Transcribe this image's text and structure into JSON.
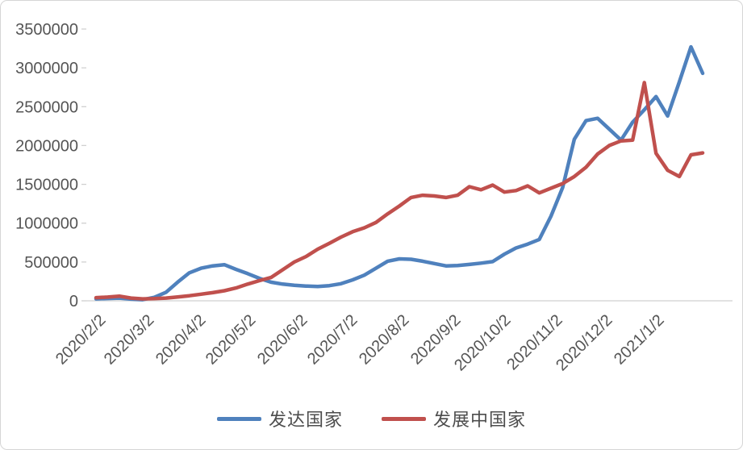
{
  "chart_data": {
    "type": "line",
    "title": "",
    "legend_position": "bottom",
    "grid": "none",
    "y_axis_range": [
      0,
      3500000
    ],
    "y_tick_step": 500000,
    "y_tick_labels": [
      "0",
      "500000",
      "1000000",
      "1500000",
      "2000000",
      "2500000",
      "3000000",
      "3500000"
    ],
    "x_tick_labels": [
      "2020/2/2",
      "2020/3/2",
      "2020/4/2",
      "2020/5/2",
      "2020/6/2",
      "2020/7/2",
      "2020/8/2",
      "2020/9/2",
      "2020/10/2",
      "2020/11/2",
      "2020/12/2",
      "2021/1/2"
    ],
    "x": [
      "2020/2/2",
      "2020/2/9",
      "2020/2/16",
      "2020/2/23",
      "2020/3/1",
      "2020/3/8",
      "2020/3/15",
      "2020/3/22",
      "2020/3/29",
      "2020/4/5",
      "2020/4/12",
      "2020/4/19",
      "2020/4/26",
      "2020/5/3",
      "2020/5/10",
      "2020/5/17",
      "2020/5/24",
      "2020/5/31",
      "2020/6/7",
      "2020/6/14",
      "2020/6/21",
      "2020/6/28",
      "2020/7/5",
      "2020/7/12",
      "2020/7/19",
      "2020/7/26",
      "2020/8/2",
      "2020/8/9",
      "2020/8/16",
      "2020/8/23",
      "2020/8/30",
      "2020/9/6",
      "2020/9/13",
      "2020/9/20",
      "2020/9/27",
      "2020/10/4",
      "2020/10/11",
      "2020/10/18",
      "2020/10/25",
      "2020/11/1",
      "2020/11/8",
      "2020/11/15",
      "2020/11/22",
      "2020/11/29",
      "2020/12/6",
      "2020/12/13",
      "2020/12/20",
      "2020/12/27",
      "2021/1/3",
      "2021/1/10",
      "2021/1/17",
      "2021/1/24",
      "2021/1/31"
    ],
    "series": [
      {
        "name": "发达国家",
        "color": "#4F81BD",
        "values": [
          25000,
          30000,
          35000,
          22000,
          15000,
          45000,
          110000,
          240000,
          360000,
          420000,
          450000,
          465000,
          405000,
          350000,
          290000,
          240000,
          215000,
          200000,
          190000,
          185000,
          195000,
          220000,
          270000,
          330000,
          420000,
          510000,
          540000,
          535000,
          510000,
          480000,
          450000,
          455000,
          468000,
          485000,
          505000,
          600000,
          680000,
          730000,
          790000,
          1090000,
          1460000,
          2080000,
          2320000,
          2350000,
          2210000,
          2070000,
          2300000,
          2460000,
          2630000,
          2380000,
          2820000,
          3270000,
          2930000
        ]
      },
      {
        "name": "发展中国家",
        "color": "#C0504D",
        "values": [
          40000,
          48000,
          60000,
          35000,
          25000,
          28000,
          35000,
          50000,
          65000,
          85000,
          105000,
          130000,
          165000,
          215000,
          260000,
          300000,
          400000,
          500000,
          570000,
          665000,
          740000,
          820000,
          890000,
          940000,
          1010000,
          1120000,
          1220000,
          1330000,
          1360000,
          1350000,
          1330000,
          1360000,
          1470000,
          1430000,
          1490000,
          1400000,
          1420000,
          1480000,
          1390000,
          1450000,
          1510000,
          1600000,
          1720000,
          1890000,
          2000000,
          2060000,
          2070000,
          2810000,
          1900000,
          1680000,
          1600000,
          1880000,
          1905000
        ]
      }
    ]
  }
}
